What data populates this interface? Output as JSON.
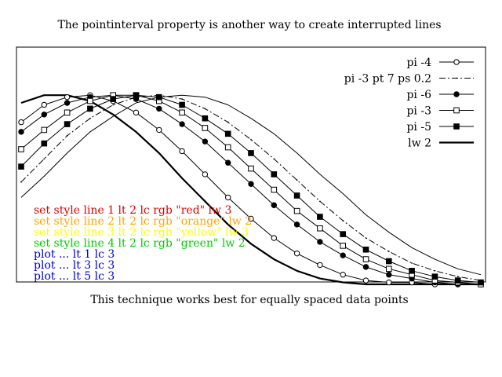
{
  "chart_data": {
    "type": "line",
    "title": "The pointinterval property is another way to create interrupted lines",
    "xlabel": "This technique works best for equally spaced data points",
    "ylabel": "",
    "grid": false,
    "legend_placement": "top-right",
    "x": [
      0,
      1,
      2,
      3,
      4,
      5,
      6,
      7,
      8,
      9,
      10,
      11,
      12,
      13,
      14,
      15,
      16,
      17,
      18,
      19,
      20
    ],
    "series": [
      {
        "name": "pi -4",
        "style": "solid",
        "marker": "open-circle",
        "values": [
          0.84,
          0.93,
          0.97,
          0.98,
          0.95,
          0.89,
          0.8,
          0.69,
          0.57,
          0.45,
          0.34,
          0.24,
          0.16,
          0.1,
          0.05,
          0.02,
          0.01,
          0.01,
          0.0,
          0.0,
          0.0
        ]
      },
      {
        "name": "pi -3 pt 7 ps 0.2",
        "style": "dashdot",
        "marker": "tiny-dot",
        "values": [
          0.53,
          0.65,
          0.77,
          0.86,
          0.93,
          0.97,
          0.98,
          0.96,
          0.91,
          0.84,
          0.75,
          0.65,
          0.54,
          0.43,
          0.33,
          0.24,
          0.17,
          0.11,
          0.07,
          0.04,
          0.02
        ]
      },
      {
        "name": "pi -6",
        "style": "solid",
        "marker": "filled-circle",
        "values": [
          0.79,
          0.88,
          0.94,
          0.97,
          0.98,
          0.96,
          0.91,
          0.83,
          0.74,
          0.63,
          0.52,
          0.41,
          0.31,
          0.22,
          0.15,
          0.09,
          0.05,
          0.03,
          0.01,
          0.0,
          0.0
        ]
      },
      {
        "name": "pi -3",
        "style": "solid",
        "marker": "open-square",
        "values": [
          0.7,
          0.8,
          0.89,
          0.95,
          0.98,
          0.98,
          0.95,
          0.89,
          0.81,
          0.71,
          0.6,
          0.49,
          0.38,
          0.29,
          0.2,
          0.13,
          0.08,
          0.05,
          0.02,
          0.01,
          0.0
        ]
      },
      {
        "name": "pi -5",
        "style": "solid",
        "marker": "filled-square",
        "values": [
          0.61,
          0.73,
          0.83,
          0.91,
          0.96,
          0.98,
          0.97,
          0.93,
          0.86,
          0.78,
          0.68,
          0.57,
          0.46,
          0.35,
          0.26,
          0.18,
          0.12,
          0.07,
          0.04,
          0.02,
          0.01
        ]
      },
      {
        "name": "lw 2",
        "style": "solid-thick",
        "marker": "none",
        "values": [
          0.94,
          0.98,
          0.98,
          0.95,
          0.88,
          0.79,
          0.68,
          0.55,
          0.43,
          0.31,
          0.21,
          0.13,
          0.07,
          0.03,
          0.01,
          0.0,
          0.0,
          0.0,
          0.0,
          0.0,
          0.0
        ]
      },
      {
        "name": "",
        "style": "solid-thin",
        "marker": "none",
        "values": [
          0.45,
          0.56,
          0.68,
          0.79,
          0.87,
          0.94,
          0.97,
          0.98,
          0.97,
          0.93,
          0.86,
          0.78,
          0.68,
          0.57,
          0.47,
          0.36,
          0.27,
          0.19,
          0.13,
          0.08,
          0.05
        ]
      }
    ],
    "xlim": [
      0,
      20
    ],
    "ylim": [
      0,
      1.05
    ],
    "annotations": [
      {
        "text": "set style line 1 lt 2 lc rgb \"red\" lw 3",
        "color": "#dd0000"
      },
      {
        "text": "set style line 2 lt 2 lc rgb \"orange\" lw 2",
        "color": "#ffa500"
      },
      {
        "text": "set style line 3 lt 2 lc rgb \"yellow\" lw 3",
        "color": "#ffff00"
      },
      {
        "text": "set style line 4 lt 2 lc rgb \"green\" lw 2",
        "color": "#00cc00"
      },
      {
        "text": "plot ... lt 1 lc 3",
        "color": "#0000cc"
      },
      {
        "text": "plot ... lt 3 lc 3",
        "color": "#0000cc"
      },
      {
        "text": "plot ... lt 5 lc 3",
        "color": "#0000cc"
      }
    ]
  }
}
